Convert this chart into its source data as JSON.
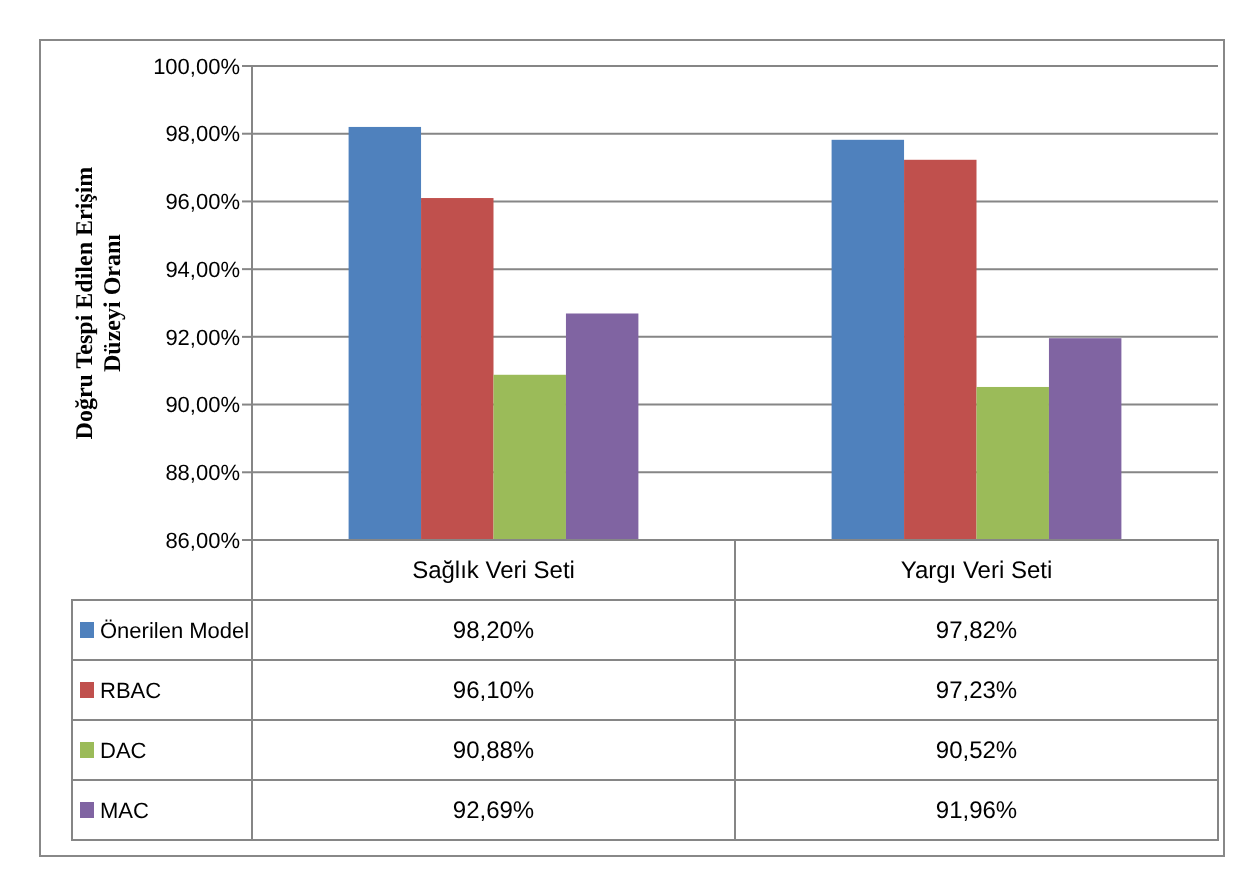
{
  "chart_data": {
    "type": "bar",
    "ylabel": "Doğru Tespi Edilen Erişim\nDüzeyi Oranı",
    "categories": [
      "Sağlık Veri Seti",
      "Yargı Veri Seti"
    ],
    "series": [
      {
        "name": "Önerilen Model",
        "color": "#4f81bd",
        "values": [
          98.2,
          97.82
        ],
        "value_labels": [
          "98,20%",
          "97,82%"
        ]
      },
      {
        "name": "RBAC",
        "color": "#c0504d",
        "values": [
          96.1,
          97.23
        ],
        "value_labels": [
          "96,10%",
          "97,23%"
        ]
      },
      {
        "name": "DAC",
        "color": "#9bbb59",
        "values": [
          90.88,
          90.52
        ],
        "value_labels": [
          "90,88%",
          "90,52%"
        ]
      },
      {
        "name": "MAC",
        "color": "#8064a2",
        "values": [
          92.69,
          91.96
        ],
        "value_labels": [
          "92,69%",
          "91,96%"
        ]
      }
    ],
    "ylim": [
      86,
      100
    ],
    "yticks": [
      {
        "value": 86,
        "label": "86,00%"
      },
      {
        "value": 88,
        "label": "88,00%"
      },
      {
        "value": 90,
        "label": "90,00%"
      },
      {
        "value": 92,
        "label": "92,00%"
      },
      {
        "value": 94,
        "label": "94,00%"
      },
      {
        "value": 96,
        "label": "96,00%"
      },
      {
        "value": 98,
        "label": "98,00%"
      },
      {
        "value": 100,
        "label": "100,00%"
      }
    ],
    "grid": "y",
    "legend": "bottom left"
  }
}
